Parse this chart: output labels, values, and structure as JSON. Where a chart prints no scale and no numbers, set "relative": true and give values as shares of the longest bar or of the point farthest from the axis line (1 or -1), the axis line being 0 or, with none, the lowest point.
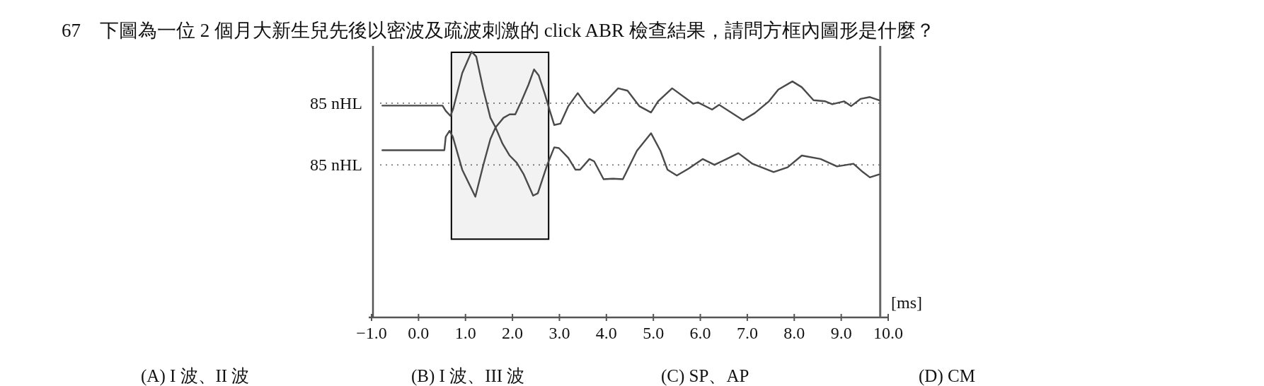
{
  "chart_data": {
    "type": "line",
    "relative": true,
    "title": "67　下圖為一位 2 個月大新生兒先後以密波及疏波刺激的 click ABR 檢查結果，請問方框內圖形是什麼？",
    "xlabel": "[ms]",
    "xlim": [
      -1,
      10
    ],
    "xticks": [
      {
        "value": -1,
        "label": "−1.0"
      },
      {
        "value": 0,
        "label": "0.0"
      },
      {
        "value": 1,
        "label": "1.0"
      },
      {
        "value": 2,
        "label": "2.0"
      },
      {
        "value": 3,
        "label": "3.0"
      },
      {
        "value": 4,
        "label": "4.0"
      },
      {
        "value": 5,
        "label": "5.0"
      },
      {
        "value": 6,
        "label": "6.0"
      },
      {
        "value": 7,
        "label": "7.0"
      },
      {
        "value": 8,
        "label": "8.0"
      },
      {
        "value": 9,
        "label": "9.0"
      },
      {
        "value": 10,
        "label": "10.0"
      }
    ],
    "series": [
      {
        "color": "#4a4a4a",
        "x": [
          -0.77,
          0.51,
          0.58,
          0.68,
          0.74,
          0.93,
          1.13,
          1.23,
          1.38,
          1.53,
          1.64,
          1.81,
          1.94,
          2.06,
          2.19,
          2.34,
          2.46,
          2.56,
          2.69,
          2.78,
          2.89,
          3.02,
          3.19,
          3.39,
          3.59,
          3.74,
          3.94,
          4.25,
          4.45,
          4.7,
          4.95,
          5.1,
          5.4,
          5.85,
          5.95,
          6.25,
          6.4,
          6.91,
          7.16,
          7.46,
          7.66,
          7.96,
          8.16,
          8.41,
          8.66,
          8.81,
          9.06,
          9.21,
          9.41,
          9.61,
          9.81
        ],
        "values": [
          0.797,
          0.797,
          0.777,
          0.758,
          0.786,
          0.919,
          1.0,
          0.981,
          0.857,
          0.751,
          0.715,
          0.751,
          0.764,
          0.764,
          0.813,
          0.875,
          0.933,
          0.91,
          0.84,
          0.786,
          0.724,
          0.729,
          0.795,
          0.844,
          0.795,
          0.769,
          0.804,
          0.862,
          0.853,
          0.795,
          0.771,
          0.813,
          0.862,
          0.804,
          0.809,
          0.782,
          0.8,
          0.742,
          0.769,
          0.813,
          0.857,
          0.888,
          0.866,
          0.817,
          0.813,
          0.802,
          0.813,
          0.795,
          0.822,
          0.829,
          0.817
        ]
      },
      {
        "color": "#4a4a4a",
        "x": [
          -0.77,
          0.55,
          0.58,
          0.66,
          0.73,
          0.93,
          1.21,
          1.38,
          1.53,
          1.64,
          1.79,
          1.94,
          2.09,
          2.24,
          2.44,
          2.54,
          2.74,
          2.89,
          2.99,
          3.19,
          3.34,
          3.44,
          3.64,
          3.74,
          3.94,
          4.14,
          4.35,
          4.65,
          4.95,
          5.15,
          5.3,
          5.5,
          5.75,
          6.05,
          6.3,
          6.56,
          6.81,
          7.11,
          7.56,
          7.86,
          8.16,
          8.56,
          8.91,
          9.26,
          9.46,
          9.61,
          9.81
        ],
        "values": [
          0.629,
          0.629,
          0.68,
          0.702,
          0.68,
          0.556,
          0.454,
          0.574,
          0.671,
          0.715,
          0.653,
          0.609,
          0.582,
          0.538,
          0.458,
          0.467,
          0.574,
          0.64,
          0.637,
          0.6,
          0.556,
          0.556,
          0.596,
          0.587,
          0.52,
          0.522,
          0.52,
          0.627,
          0.693,
          0.627,
          0.556,
          0.534,
          0.56,
          0.596,
          0.574,
          0.596,
          0.618,
          0.578,
          0.547,
          0.565,
          0.609,
          0.596,
          0.568,
          0.578,
          0.547,
          0.527,
          0.538
        ]
      }
    ],
    "ref_lines": [
      {
        "axis": "y",
        "value": 0.806,
        "label": "85 nHL",
        "color": "#888888",
        "line_style": "dotted"
      },
      {
        "axis": "y",
        "value": 0.574,
        "label": "85 nHL",
        "color": "#888888",
        "line_style": "dotted"
      },
      {
        "axis": "x",
        "value": 9.83,
        "label": null,
        "color": "#666666",
        "line_style": "solid"
      }
    ],
    "bands": [
      {
        "axis": "x",
        "from": 0.7,
        "to": 2.77,
        "label": null,
        "color": "#000000"
      }
    ],
    "annotations": [
      "(A) I 波、II 波",
      "(B) I 波、III 波",
      "(C) SP、AP",
      "(D) CM"
    ]
  }
}
